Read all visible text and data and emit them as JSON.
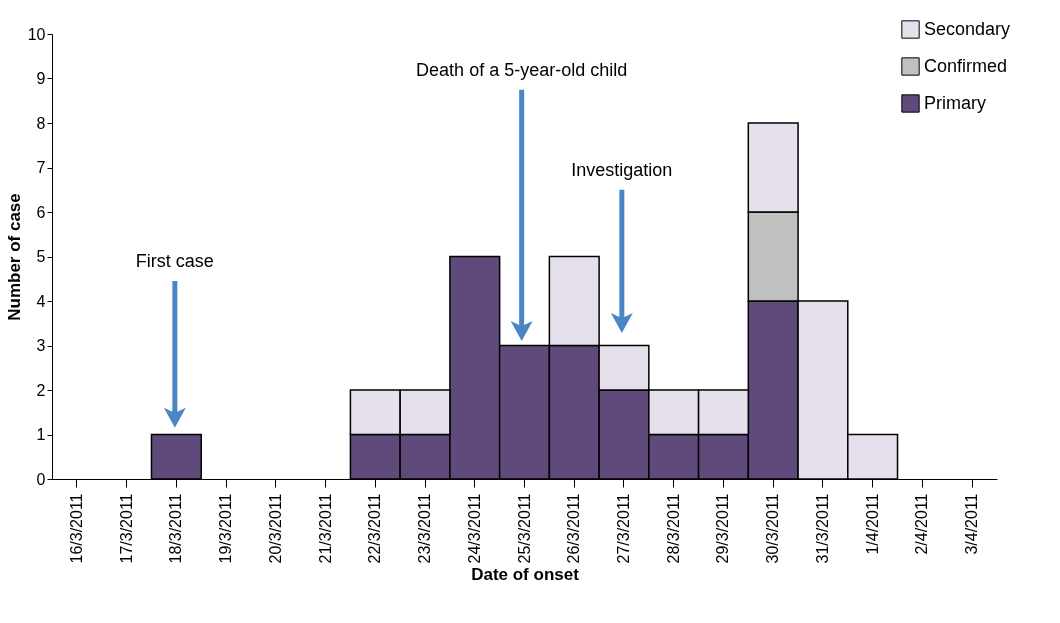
{
  "chart_data": {
    "type": "bar",
    "stacked": true,
    "xlabel": "Date of onset",
    "ylabel": "Number of case",
    "categories": [
      "16/3/2011",
      "17/3/2011",
      "18/3/2011",
      "19/3/2011",
      "20/3/2011",
      "21/3/2011",
      "22/3/2011",
      "23/3/2011",
      "24/3/2011",
      "25/3/2011",
      "26/3/2011",
      "27/3/2011",
      "28/3/2011",
      "29/3/2011",
      "30/3/2011",
      "31/3/2011",
      "1/4/2011",
      "2/4/2011",
      "3/4/2011"
    ],
    "series": [
      {
        "name": "Primary",
        "color": "#604a7b",
        "values": [
          0,
          0,
          1,
          0,
          0,
          0,
          1,
          1,
          5,
          3,
          3,
          2,
          1,
          1,
          4,
          0,
          0,
          0,
          0
        ]
      },
      {
        "name": "Confirmed",
        "color": "#c0c0c0",
        "values": [
          0,
          0,
          0,
          0,
          0,
          0,
          0,
          0,
          0,
          0,
          0,
          0,
          0,
          0,
          2,
          0,
          0,
          0,
          0
        ]
      },
      {
        "name": "Secondary",
        "color": "#e6e0ec",
        "values": [
          0,
          0,
          0,
          0,
          0,
          0,
          1,
          1,
          0,
          0,
          2,
          1,
          1,
          1,
          2,
          4,
          1,
          0,
          0
        ]
      }
    ],
    "ylim": [
      0,
      10
    ],
    "yticks": [
      0,
      1,
      2,
      3,
      4,
      5,
      6,
      7,
      8,
      9,
      10
    ],
    "grid": false,
    "legend": "top right",
    "annotations": [
      "First case",
      "Death of a 5-year-old child",
      "Investigation"
    ]
  }
}
